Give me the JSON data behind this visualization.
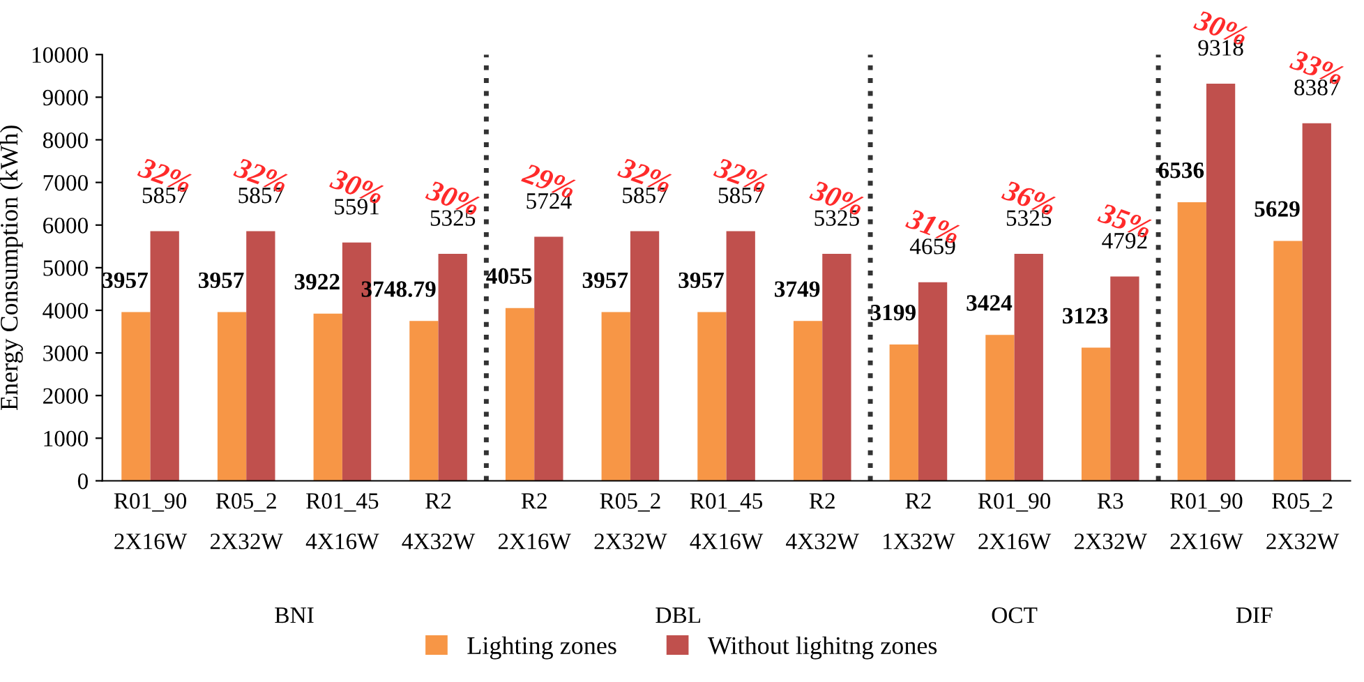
{
  "chart_data": {
    "type": "bar",
    "ylabel": "Energy Consumption (kWh)",
    "categories": [
      "R01_90\n2X16W",
      "R05_2\n2X32W",
      "R01_45\n4X16W",
      "R2\n4X32W",
      "R2\n2X16W",
      "R05_2\n2X32W",
      "R01_45\n4X16W",
      "R2\n4X32W",
      "R2\n1X32W",
      "R01_90\n2X16W",
      "R3\n2X32W",
      "R01_90\n2X16W",
      "R05_2\n2X32W"
    ],
    "series": [
      {
        "name": "Lighting zones",
        "color": "#f79646",
        "values": [
          3957,
          3957,
          3922,
          3748.79,
          4055,
          3957,
          3957,
          3749,
          3199,
          3424,
          3123,
          6536,
          5629
        ]
      },
      {
        "name": "Without lighitng zones",
        "color": "#c0504d",
        "values": [
          5857,
          5857,
          5591,
          5325,
          5724,
          5857,
          5857,
          5325,
          4659,
          5325,
          4792,
          9318,
          8387
        ]
      }
    ],
    "ylim": [
      0,
      10000
    ],
    "yticks": [
      0,
      1000,
      2000,
      3000,
      4000,
      5000,
      6000,
      7000,
      8000,
      9000,
      10000
    ],
    "data_labels": true,
    "legend": "bottom",
    "grid": false,
    "annotations": [
      "32%",
      "32%",
      "30%",
      "30%",
      "29%",
      "32%",
      "32%",
      "30%",
      "31%",
      "36%",
      "35%",
      "30%",
      "33%",
      "BNI",
      "DBL",
      "OCT",
      "DIF"
    ]
  }
}
